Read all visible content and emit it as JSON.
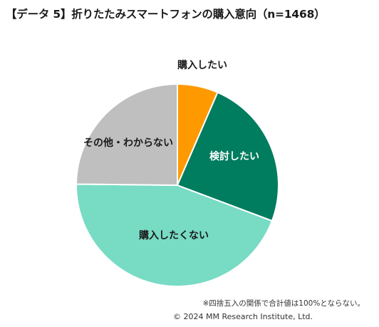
{
  "chart_data": {
    "type": "pie",
    "title": "【データ 5】折りたたみスマートフォンの購入意向（n=1468）",
    "slices": [
      {
        "label": "購入したい",
        "value": 6.5,
        "color": "#FF9900",
        "label_color": "#1a1a1a"
      },
      {
        "label": "検討したい",
        "value": 24.2,
        "color": "#007C5E",
        "label_color": "#ffffff"
      },
      {
        "label": "購入したくない",
        "value": 44.4,
        "color": "#78DBC4",
        "label_color": "#1a1a1a"
      },
      {
        "label": "その他・わからない",
        "value": 24.8,
        "color": "#BFBFBF",
        "label_color": "#1a1a1a"
      }
    ]
  },
  "footer": {
    "note": "※四捨五入の関係で合計値は100%とならない。",
    "copyright": "© 2024 MM Research Institute, Ltd."
  }
}
